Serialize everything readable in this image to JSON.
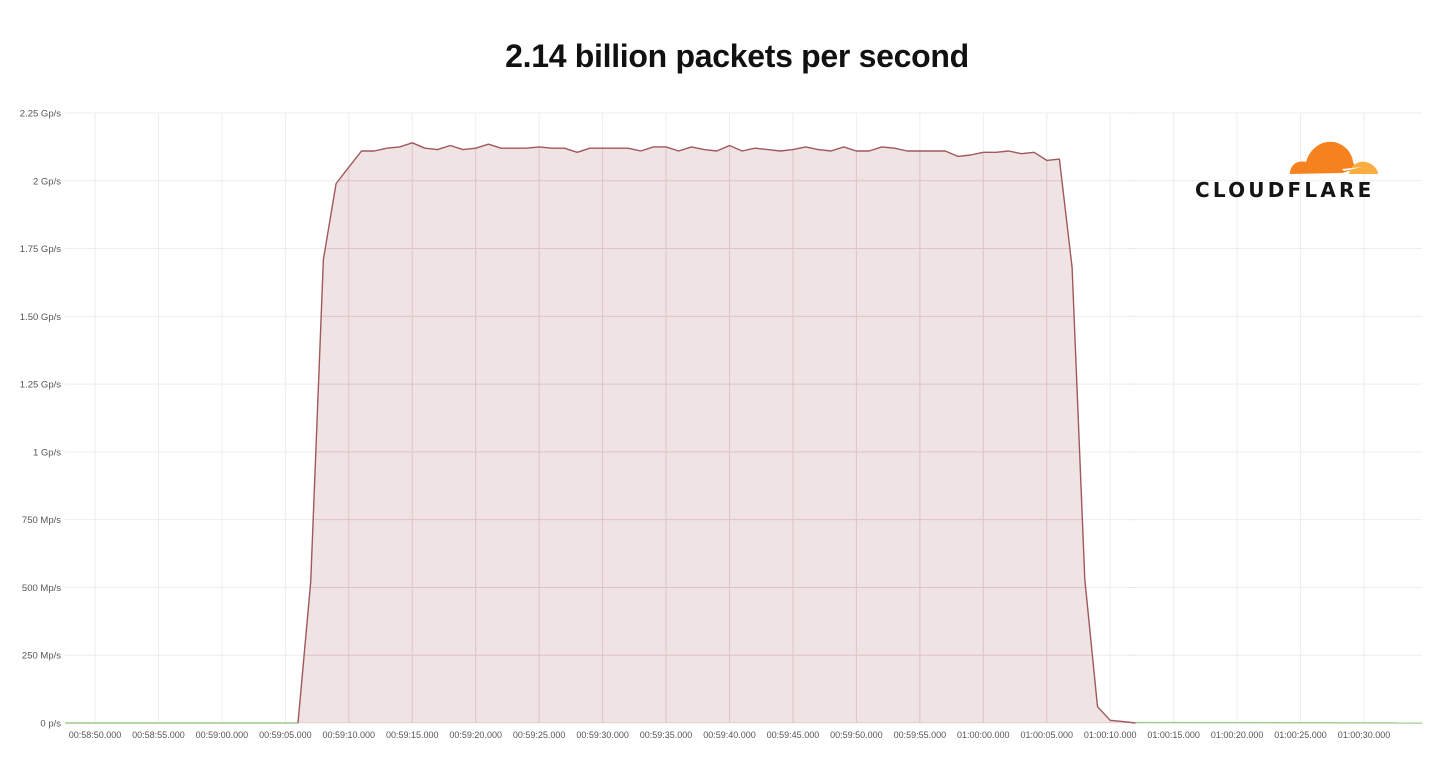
{
  "title": "2.14 billion packets per second",
  "brand": {
    "name": "CLOUDFLARE",
    "cloud_color": "#F6821F",
    "cloud_light_color": "#FBAD41"
  },
  "colors": {
    "attack_line": "#A0585C",
    "attack_fill": "#EFE3E4",
    "baseline_line": "#9CCB8C",
    "grid": "#EEEEEE",
    "grid_in_area": "#DEC4C6"
  },
  "chart_data": {
    "type": "area",
    "title": "2.14 billion packets per second",
    "xlabel": "",
    "ylabel": "",
    "ylim": [
      0,
      2.25
    ],
    "grid": true,
    "legend": "none",
    "y_ticks": [
      "0 p/s",
      "250 Mp/s",
      "500 Mp/s",
      "750 Mp/s",
      "1 Gp/s",
      "1.25 Gp/s",
      "1.50 Gp/s",
      "1.75 Gp/s",
      "2 Gp/s",
      "2.25 Gp/s"
    ],
    "x_ticks": [
      "00:58:50.000",
      "00:58:55.000",
      "00:59:00.000",
      "00:59:05.000",
      "00:59:10.000",
      "00:59:15.000",
      "00:59:20.000",
      "00:59:25.000",
      "00:59:30.000",
      "00:59:35.000",
      "00:59:40.000",
      "00:59:45.000",
      "00:59:50.000",
      "00:59:55.000",
      "01:00:00.000",
      "01:00:05.000",
      "01:00:10.000",
      "01:00:15.000",
      "01:00:20.000",
      "01:00:25.000",
      "01:00:30.000"
    ],
    "x_start_seconds_offset": -2.3,
    "series": [
      {
        "name": "baseline",
        "color": "#9CCB8C",
        "x_seconds": [
          -2.3,
          4.1
        ],
        "values_gpps": [
          0.0,
          0.0
        ]
      },
      {
        "name": "attack_packets_gpps",
        "color": "#A0585C",
        "x_seconds": [
          16,
          17,
          18,
          19,
          20,
          21,
          22,
          23,
          24,
          25,
          26,
          27,
          28,
          29,
          30,
          31,
          32,
          33,
          34,
          35,
          36,
          37,
          38,
          39,
          40,
          41,
          42,
          43,
          44,
          45,
          46,
          47,
          48,
          49,
          50,
          51,
          52,
          53,
          54,
          55,
          56,
          57,
          58,
          59,
          60,
          61,
          62,
          63,
          64,
          65,
          66,
          67,
          68,
          69,
          70,
          71,
          72,
          73,
          74,
          75,
          76,
          77,
          78,
          79,
          80,
          81,
          82
        ],
        "values_gpps": [
          0.0,
          0.52,
          1.71,
          1.99,
          2.05,
          2.11,
          2.11,
          2.12,
          2.125,
          2.14,
          2.12,
          2.115,
          2.13,
          2.115,
          2.12,
          2.135,
          2.12,
          2.12,
          2.12,
          2.125,
          2.12,
          2.12,
          2.105,
          2.12,
          2.12,
          2.12,
          2.12,
          2.11,
          2.125,
          2.125,
          2.11,
          2.125,
          2.115,
          2.11,
          2.13,
          2.11,
          2.12,
          2.115,
          2.11,
          2.115,
          2.125,
          2.115,
          2.11,
          2.125,
          2.11,
          2.11,
          2.125,
          2.12,
          2.11,
          2.11,
          2.11,
          2.11,
          2.09,
          2.095,
          2.105,
          2.105,
          2.11,
          2.1,
          2.105,
          2.075,
          2.08,
          1.68,
          0.53,
          0.06,
          0.01,
          0.005,
          0.0
        ]
      },
      {
        "name": "post_attack_baseline",
        "color": "#9CCB8C",
        "x_seconds": [
          82,
          90,
          100,
          105,
          110,
          115,
          120
        ],
        "values_gpps": [
          0.004,
          0.003,
          0.003,
          0.002,
          0.003,
          0.002,
          0.001
        ]
      }
    ]
  }
}
